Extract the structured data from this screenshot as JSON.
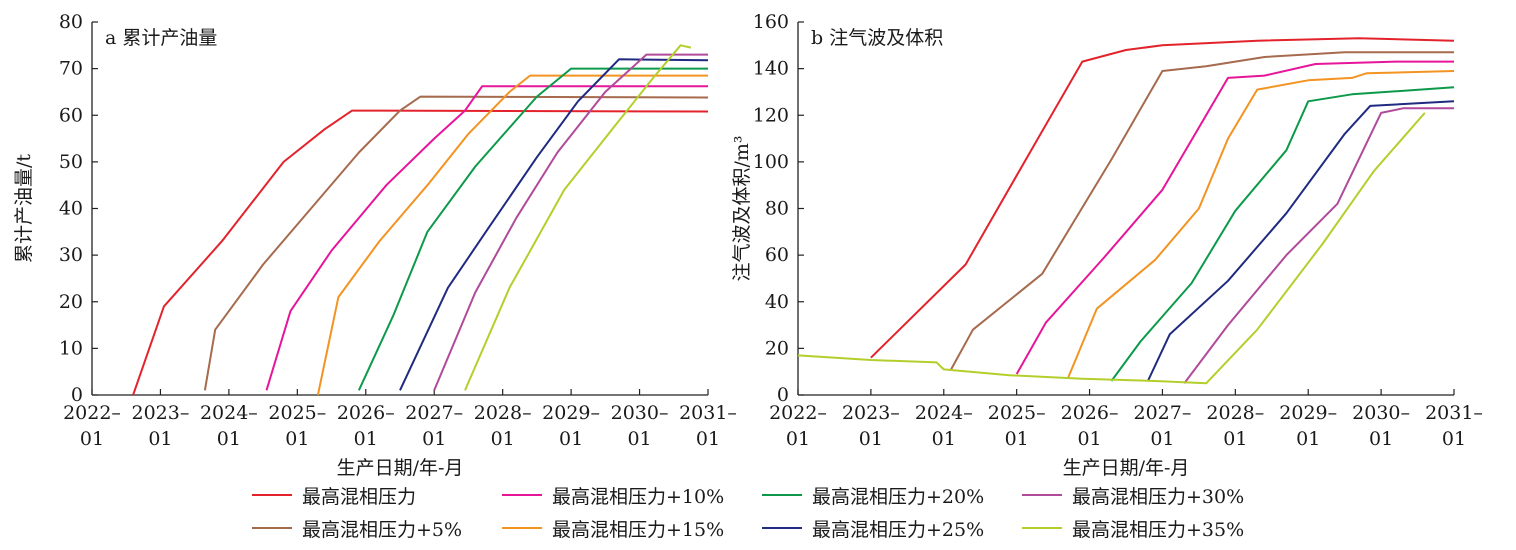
{
  "chart_data": [
    {
      "type": "line",
      "title": "a 累计产油量",
      "xlabel": "生产日期/年-月",
      "ylabel": "累计产油量/t",
      "ylim": [
        0,
        80
      ],
      "yticks": [
        "0",
        "10",
        "20",
        "30",
        "40",
        "50",
        "60",
        "70",
        "80"
      ],
      "xlim": [
        2022.0,
        2031.0
      ],
      "xticks": [
        {
          "top": "2022–",
          "bottom": "01"
        },
        {
          "top": "2023–",
          "bottom": "01"
        },
        {
          "top": "2024–",
          "bottom": "01"
        },
        {
          "top": "2025–",
          "bottom": "01"
        },
        {
          "top": "2026–",
          "bottom": "01"
        },
        {
          "top": "2027–",
          "bottom": "01"
        },
        {
          "top": "2028–",
          "bottom": "01"
        },
        {
          "top": "2029–",
          "bottom": "01"
        },
        {
          "top": "2030–",
          "bottom": "01"
        },
        {
          "top": "2031–",
          "bottom": "01"
        }
      ],
      "series": [
        {
          "name": "最高混相压力",
          "color": "#e3232c",
          "points": [
            [
              2022.6,
              0
            ],
            [
              2023.05,
              19
            ],
            [
              2023.9,
              33
            ],
            [
              2024.8,
              50
            ],
            [
              2025.4,
              57
            ],
            [
              2025.8,
              61
            ],
            [
              2031.0,
              60.8
            ]
          ]
        },
        {
          "name": "最高混相压力+5%",
          "color": "#a66a4d",
          "points": [
            [
              2023.65,
              1
            ],
            [
              2023.8,
              14
            ],
            [
              2024.5,
              28
            ],
            [
              2025.2,
              40
            ],
            [
              2025.9,
              52
            ],
            [
              2026.5,
              61
            ],
            [
              2026.8,
              64
            ],
            [
              2031.0,
              63.8
            ]
          ]
        },
        {
          "name": "最高混相压力+10%",
          "color": "#e6159a",
          "points": [
            [
              2024.55,
              1
            ],
            [
              2024.9,
              18
            ],
            [
              2025.5,
              31
            ],
            [
              2026.3,
              45
            ],
            [
              2027.0,
              55
            ],
            [
              2027.45,
              61
            ],
            [
              2027.7,
              66.2
            ],
            [
              2031.0,
              66.2
            ]
          ]
        },
        {
          "name": "最高混相压力+15%",
          "color": "#f39321",
          "points": [
            [
              2025.3,
              0
            ],
            [
              2025.6,
              21
            ],
            [
              2026.2,
              33
            ],
            [
              2026.9,
              45
            ],
            [
              2027.5,
              56
            ],
            [
              2028.1,
              65
            ],
            [
              2028.4,
              68.5
            ],
            [
              2031.0,
              68.5
            ]
          ]
        },
        {
          "name": "最高混相压力+20%",
          "color": "#0c9a4a",
          "points": [
            [
              2025.9,
              1
            ],
            [
              2026.4,
              17
            ],
            [
              2026.9,
              35
            ],
            [
              2027.6,
              49
            ],
            [
              2028.5,
              64
            ],
            [
              2029.0,
              70
            ],
            [
              2031.0,
              70
            ]
          ]
        },
        {
          "name": "最高混相压力+25%",
          "color": "#1f2a80",
          "points": [
            [
              2026.5,
              1
            ],
            [
              2027.2,
              23
            ],
            [
              2027.8,
              36
            ],
            [
              2028.5,
              51
            ],
            [
              2029.1,
              63
            ],
            [
              2029.7,
              72
            ],
            [
              2031.0,
              71.8
            ]
          ]
        },
        {
          "name": "最高混相压力+30%",
          "color": "#b04a9b",
          "points": [
            [
              2027.0,
              1
            ],
            [
              2027.6,
              22
            ],
            [
              2028.2,
              38
            ],
            [
              2028.8,
              52
            ],
            [
              2029.5,
              65
            ],
            [
              2030.1,
              73
            ],
            [
              2030.5,
              73
            ],
            [
              2031.0,
              73
            ]
          ]
        },
        {
          "name": "最高混相压力+35%",
          "color": "#b3cf2c",
          "points": [
            [
              2027.45,
              1
            ],
            [
              2028.1,
              23
            ],
            [
              2028.9,
              44
            ],
            [
              2029.6,
              57
            ],
            [
              2030.2,
              68
            ],
            [
              2030.6,
              75
            ],
            [
              2030.75,
              74.5
            ]
          ]
        }
      ]
    },
    {
      "type": "line",
      "title": "b 注气波及体积",
      "xlabel": "生产日期/年-月",
      "ylabel": "注气波及体积/m³",
      "ylim": [
        0,
        160
      ],
      "yticks": [
        "0",
        "20",
        "40",
        "60",
        "80",
        "100",
        "120",
        "140",
        "160"
      ],
      "xlim": [
        2022.0,
        2031.0
      ],
      "xticks": [
        {
          "top": "2022–",
          "bottom": "01"
        },
        {
          "top": "2023–",
          "bottom": "01"
        },
        {
          "top": "2024–",
          "bottom": "01"
        },
        {
          "top": "2025–",
          "bottom": "01"
        },
        {
          "top": "2026–",
          "bottom": "01"
        },
        {
          "top": "2027–",
          "bottom": "01"
        },
        {
          "top": "2028–",
          "bottom": "01"
        },
        {
          "top": "2029–",
          "bottom": "01"
        },
        {
          "top": "2030–",
          "bottom": "01"
        },
        {
          "top": "2031–",
          "bottom": "01"
        }
      ],
      "series": [
        {
          "name": "最高混相压力",
          "color": "#e3232c",
          "points": [
            [
              2023.0,
              16
            ],
            [
              2024.3,
              56
            ],
            [
              2025.2,
              105
            ],
            [
              2025.9,
              143
            ],
            [
              2026.5,
              148
            ],
            [
              2027.0,
              150
            ],
            [
              2028.3,
              152
            ],
            [
              2029.7,
              153
            ],
            [
              2031.0,
              152
            ]
          ]
        },
        {
          "name": "最高混相压力+5%",
          "color": "#a66a4d",
          "points": [
            [
              2024.1,
              11
            ],
            [
              2024.4,
              28
            ],
            [
              2025.35,
              52
            ],
            [
              2026.3,
              101
            ],
            [
              2027.0,
              139
            ],
            [
              2027.6,
              141
            ],
            [
              2028.4,
              145
            ],
            [
              2029.5,
              147
            ],
            [
              2031.0,
              147
            ]
          ]
        },
        {
          "name": "最高混相压力+10%",
          "color": "#e6159a",
          "points": [
            [
              2025.0,
              9
            ],
            [
              2025.4,
              31
            ],
            [
              2026.2,
              59
            ],
            [
              2027.0,
              88
            ],
            [
              2027.9,
              136
            ],
            [
              2028.4,
              137
            ],
            [
              2029.1,
              142
            ],
            [
              2030.2,
              143
            ],
            [
              2031.0,
              143
            ]
          ]
        },
        {
          "name": "最高混相压力+15%",
          "color": "#f39321",
          "points": [
            [
              2025.7,
              7
            ],
            [
              2026.1,
              37
            ],
            [
              2026.9,
              58
            ],
            [
              2027.5,
              80
            ],
            [
              2027.9,
              110
            ],
            [
              2028.3,
              131
            ],
            [
              2029.0,
              135
            ],
            [
              2029.6,
              136
            ],
            [
              2029.8,
              138
            ],
            [
              2031.0,
              139
            ]
          ]
        },
        {
          "name": "最高混相压力+20%",
          "color": "#0c9a4a",
          "points": [
            [
              2026.3,
              6
            ],
            [
              2026.7,
              23
            ],
            [
              2027.4,
              48
            ],
            [
              2028.0,
              79
            ],
            [
              2028.7,
              105
            ],
            [
              2029.0,
              126
            ],
            [
              2029.6,
              129
            ],
            [
              2031.0,
              132
            ]
          ]
        },
        {
          "name": "最高混相压力+25%",
          "color": "#1f2a80",
          "points": [
            [
              2026.8,
              6
            ],
            [
              2027.1,
              26
            ],
            [
              2027.9,
              49
            ],
            [
              2028.7,
              78
            ],
            [
              2029.5,
              112
            ],
            [
              2029.85,
              124
            ],
            [
              2031.0,
              126
            ]
          ]
        },
        {
          "name": "最高混相压力+30%",
          "color": "#b04a9b",
          "points": [
            [
              2027.3,
              5
            ],
            [
              2027.9,
              30
            ],
            [
              2028.7,
              60
            ],
            [
              2029.4,
              82
            ],
            [
              2030.0,
              121
            ],
            [
              2030.3,
              123
            ],
            [
              2031.0,
              123
            ]
          ]
        },
        {
          "name": "最高混相压力+35%",
          "color": "#b3cf2c",
          "points": [
            [
              2022.0,
              17
            ],
            [
              2023.0,
              15
            ],
            [
              2023.9,
              14
            ],
            [
              2024.0,
              11
            ],
            [
              2024.9,
              8.5
            ],
            [
              2025.9,
              7
            ],
            [
              2026.9,
              6
            ],
            [
              2027.6,
              5
            ],
            [
              2028.3,
              28
            ],
            [
              2029.2,
              65
            ],
            [
              2029.9,
              96
            ],
            [
              2030.6,
              121
            ]
          ]
        }
      ]
    }
  ],
  "legend": [
    {
      "label": "最高混相压力",
      "color": "#e3232c"
    },
    {
      "label": "最高混相压力+10%",
      "color": "#e6159a"
    },
    {
      "label": "最高混相压力+20%",
      "color": "#0c9a4a"
    },
    {
      "label": "最高混相压力+30%",
      "color": "#b04a9b"
    },
    {
      "label": "最高混相压力+5%",
      "color": "#a66a4d"
    },
    {
      "label": "最高混相压力+15%",
      "color": "#f39321"
    },
    {
      "label": "最高混相压力+25%",
      "color": "#1f2a80"
    },
    {
      "label": "最高混相压力+35%",
      "color": "#b3cf2c"
    }
  ]
}
